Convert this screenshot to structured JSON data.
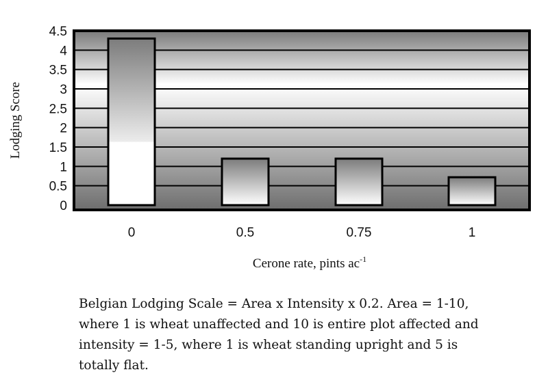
{
  "chart_data": {
    "type": "bar",
    "categories": [
      "0",
      "0.5",
      "0.75",
      "1"
    ],
    "values": [
      4.3,
      1.2,
      1.2,
      0.72
    ],
    "ylabel": "Lodging Score",
    "xlabel": "Cerone rate, pints ac",
    "xlabel_superscript": "-1",
    "yticks": [
      "0",
      "0.5",
      "1",
      "1.5",
      "2",
      "2.5",
      "3",
      "3.5",
      "4",
      "4.5"
    ],
    "ylim": [
      0,
      4.5
    ],
    "grid": true,
    "legend": "none"
  },
  "caption": "Belgian Lodging Scale = Area x Intensity x 0.2. Area = 1-10, where 1 is wheat unaffected and 10 is entire plot affected and intensity = 1-5, where 1 is wheat standing upright and 5 is totally flat."
}
